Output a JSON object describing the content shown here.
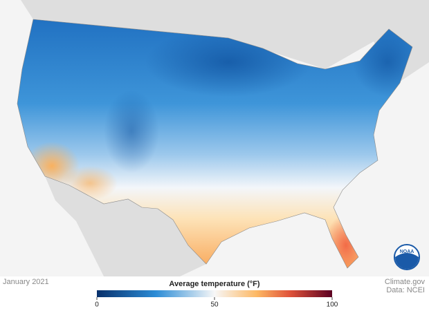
{
  "date": "January 2021",
  "legend": {
    "title": "Average temperature (°F)",
    "range": [
      0,
      100
    ],
    "ticks": [
      0,
      50,
      100
    ]
  },
  "credits": [
    "Climate.gov",
    "Data: NCEI"
  ],
  "logo": "NOAA"
}
